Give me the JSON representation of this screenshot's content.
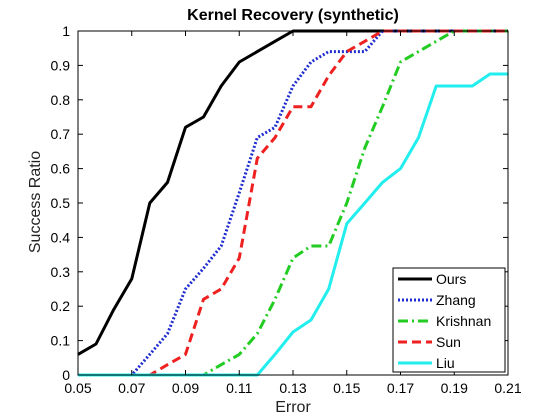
{
  "chart_data": {
    "type": "line",
    "title": "Kernel Recovery (synthetic)",
    "xlabel": "Error",
    "ylabel": "Success Ratio",
    "xlim": [
      0.05,
      0.21
    ],
    "ylim": [
      0,
      1
    ],
    "xticks": [
      0.05,
      0.07,
      0.09,
      0.11,
      0.13,
      0.15,
      0.17,
      0.19,
      0.21
    ],
    "xtick_labels": [
      "0.05",
      "0.07",
      "0.09",
      "0.11",
      "0.13",
      "0.15",
      "0.17",
      "0.19",
      "0.21"
    ],
    "yticks": [
      0,
      0.1,
      0.2,
      0.3,
      0.4,
      0.5,
      0.6,
      0.7,
      0.8,
      0.9,
      1
    ],
    "ytick_labels": [
      "0",
      "0.1",
      "0.2",
      "0.3",
      "0.4",
      "0.5",
      "0.6",
      "0.7",
      "0.8",
      "0.9",
      "1"
    ],
    "grid": false,
    "legend_position": "bottom-right",
    "series": [
      {
        "name": "Ours",
        "color": "#000000",
        "dash": "solid",
        "x": [
          0.05,
          0.0567,
          0.0633,
          0.07,
          0.0767,
          0.0833,
          0.09,
          0.0967,
          0.1033,
          0.11,
          0.1167,
          0.1233,
          0.13,
          0.21
        ],
        "y": [
          0.06,
          0.09,
          0.19,
          0.28,
          0.5,
          0.56,
          0.72,
          0.75,
          0.84,
          0.91,
          0.94,
          0.97,
          1.0,
          1.0
        ]
      },
      {
        "name": "Zhang",
        "color": "#1f2ccf",
        "dash": "dotted",
        "x": [
          0.05,
          0.07,
          0.0767,
          0.0833,
          0.09,
          0.0967,
          0.1033,
          0.11,
          0.1167,
          0.1233,
          0.13,
          0.1367,
          0.1433,
          0.15,
          0.1567,
          0.1633,
          0.1667,
          0.21
        ],
        "y": [
          0.0,
          0.0,
          0.06,
          0.12,
          0.25,
          0.31,
          0.375,
          0.53,
          0.69,
          0.72,
          0.84,
          0.91,
          0.94,
          0.94,
          0.94,
          1.0,
          1.0,
          1.0
        ]
      },
      {
        "name": "Krishnan",
        "color": "#22cc22",
        "dash": "dashdot",
        "x": [
          0.05,
          0.0967,
          0.1033,
          0.11,
          0.1167,
          0.1233,
          0.13,
          0.1367,
          0.1433,
          0.15,
          0.1567,
          0.1633,
          0.17,
          0.1767,
          0.1833,
          0.19,
          0.21
        ],
        "y": [
          0.0,
          0.0,
          0.03,
          0.06,
          0.12,
          0.22,
          0.34,
          0.375,
          0.375,
          0.5,
          0.66,
          0.78,
          0.91,
          0.94,
          0.97,
          1.0,
          1.0
        ]
      },
      {
        "name": "Sun",
        "color": "#ee2020",
        "dash": "dashed",
        "x": [
          0.05,
          0.0767,
          0.0833,
          0.09,
          0.0967,
          0.1033,
          0.11,
          0.1167,
          0.1233,
          0.13,
          0.1367,
          0.1433,
          0.15,
          0.1567,
          0.1633,
          0.21
        ],
        "y": [
          0.0,
          0.0,
          0.03,
          0.06,
          0.22,
          0.25,
          0.34,
          0.63,
          0.69,
          0.78,
          0.78,
          0.87,
          0.94,
          0.97,
          1.0,
          1.0
        ]
      },
      {
        "name": "Liu",
        "color": "#22eeee",
        "dash": "solid",
        "x": [
          0.05,
          0.1167,
          0.1233,
          0.13,
          0.1367,
          0.1433,
          0.15,
          0.1567,
          0.1633,
          0.17,
          0.1767,
          0.1833,
          0.19,
          0.1967,
          0.2033,
          0.21
        ],
        "y": [
          0.0,
          0.0,
          0.06,
          0.125,
          0.16,
          0.25,
          0.44,
          0.5,
          0.56,
          0.6,
          0.69,
          0.84,
          0.84,
          0.84,
          0.875,
          0.875
        ]
      }
    ]
  }
}
